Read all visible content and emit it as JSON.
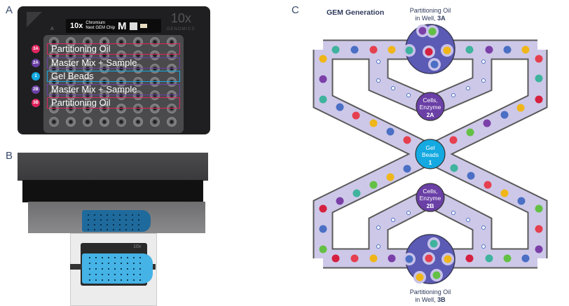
{
  "panels": {
    "a": "A",
    "b": "B",
    "c": "C"
  },
  "chip": {
    "logo": "10x",
    "logo_sub": "GENOMICS",
    "label_line1": "Chromium",
    "label_line2": "Next GEM Chip",
    "chip_type": "M",
    "row_letter": "A",
    "rows": [
      {
        "badge": "3A",
        "label": "Partitioning Oil",
        "color": "#e0245e"
      },
      {
        "badge": "2A",
        "label": "Master Mix + Sample",
        "color": "#6a3fa6"
      },
      {
        "badge": "1",
        "label": "Gel Beads",
        "color": "#14a9e1"
      },
      {
        "badge": "2B",
        "label": "Master Mix + Sample",
        "color": "#6a3fa6"
      },
      {
        "badge": "3B",
        "label": "Partitioning Oil",
        "color": "#e0245e"
      }
    ]
  },
  "instrument": {
    "chip_logo": "10x"
  },
  "diagram": {
    "title": "GEM Generation",
    "top_well": {
      "line1": "Partitioning Oil",
      "line2_prefix": "in Well, ",
      "line2_bold": "3A"
    },
    "bottom_well": {
      "line1": "Partitioning Oil",
      "line2_prefix": "in Well, ",
      "line2_bold": "3B"
    },
    "node_2a": {
      "line1": "Cells,",
      "line2": "Enzyme",
      "id": "2A"
    },
    "node_2b": {
      "line1": "Cells,",
      "line2": "Enzyme",
      "id": "2B"
    },
    "node_1": {
      "line1": "Gel",
      "line2": "Beads",
      "id": "1"
    },
    "colors": {
      "channel": "#cdc8e8",
      "channel_border": "#5a5a5a",
      "well": "#5b5bb5",
      "cells": "#6a3fa6",
      "gel": "#14a9e1"
    }
  }
}
